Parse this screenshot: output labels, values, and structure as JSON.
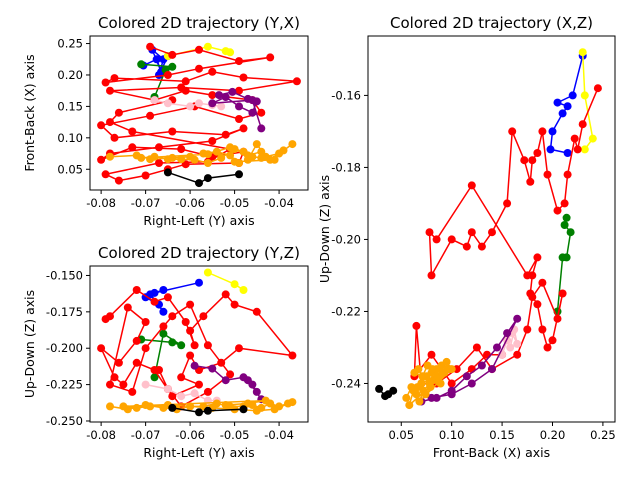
{
  "chart_data": [
    {
      "type": "line",
      "title": "Colored 2D trajectory (Y,X)",
      "xlabel": "Right-Left (Y) axis",
      "ylabel": "Front-Back (X) axis",
      "xlim": [
        -0.0825,
        -0.0335
      ],
      "ylim": [
        0.017,
        0.262
      ],
      "xticks": [
        "-0.08",
        "-0.07",
        "-0.06",
        "-0.05",
        "-0.04"
      ],
      "xtick_values": [
        -0.08,
        -0.07,
        -0.06,
        -0.05,
        -0.04
      ],
      "yticks": [
        "0.05",
        "0.10",
        "0.15",
        "0.20",
        "0.25"
      ],
      "ytick_values": [
        0.05,
        0.1,
        0.15,
        0.2,
        0.25
      ],
      "grid": false,
      "series": [
        {
          "color": "#0000ff",
          "x": [
            -0.0705,
            -0.0675,
            -0.0665,
            -0.0685,
            -0.066,
            -0.067,
            -0.065
          ],
          "y": [
            0.215,
            0.225,
            0.205,
            0.24,
            0.225,
            0.2,
            0.23
          ]
        },
        {
          "color": "#ffff00",
          "x": [
            -0.065,
            -0.056,
            -0.052,
            -0.051
          ],
          "y": [
            0.23,
            0.245,
            0.238,
            0.236
          ]
        },
        {
          "color": "#008000",
          "x": [
            -0.071,
            -0.064,
            -0.0655,
            -0.068
          ],
          "y": [
            0.217,
            0.213,
            0.208,
            0.165
          ]
        },
        {
          "color": "#ff0000",
          "x": [
            -0.069,
            -0.064,
            -0.058,
            -0.049,
            -0.042,
            -0.058,
            -0.065,
            -0.079,
            -0.077,
            -0.061,
            -0.055,
            -0.048,
            -0.036,
            -0.049,
            -0.062,
            -0.078,
            -0.068,
            -0.061,
            -0.055,
            -0.046,
            -0.044,
            -0.049,
            -0.059,
            -0.069,
            -0.08,
            -0.077,
            -0.064,
            -0.052,
            -0.048,
            -0.055,
            -0.067,
            -0.078,
            -0.08,
            -0.073,
            -0.062,
            -0.055,
            -0.048,
            -0.049,
            -0.061,
            -0.065,
            -0.07,
            -0.076,
            -0.079,
            -0.067,
            -0.056,
            -0.051,
            -0.073,
            -0.078,
            -0.076,
            -0.064
          ],
          "y": [
            0.245,
            0.232,
            0.24,
            0.222,
            0.228,
            0.21,
            0.2,
            0.188,
            0.195,
            0.19,
            0.205,
            0.196,
            0.19,
            0.175,
            0.18,
            0.175,
            0.16,
            0.175,
            0.168,
            0.16,
            0.14,
            0.13,
            0.15,
            0.135,
            0.12,
            0.1,
            0.11,
            0.105,
            0.115,
            0.095,
            0.085,
            0.075,
            0.065,
            0.085,
            0.082,
            0.07,
            0.078,
            0.06,
            0.058,
            0.05,
            0.04,
            0.032,
            0.042,
            0.06,
            0.062,
            0.082,
            0.11,
            0.125,
            0.14,
            0.16
          ]
        },
        {
          "color": "#ffc0cb",
          "x": [
            -0.068,
            -0.065,
            -0.06,
            -0.058,
            -0.055,
            -0.053
          ],
          "y": [
            0.16,
            0.155,
            0.15,
            0.155,
            0.152,
            0.15
          ]
        },
        {
          "color": "#800080",
          "x": [
            -0.0535,
            -0.0505,
            -0.047,
            -0.045,
            -0.046,
            -0.049,
            -0.052,
            -0.055,
            -0.046,
            -0.044
          ],
          "y": [
            0.168,
            0.173,
            0.162,
            0.158,
            0.14,
            0.15,
            0.165,
            0.155,
            0.16,
            0.115
          ]
        },
        {
          "color": "#ffa500",
          "x": [
            -0.078,
            -0.072,
            -0.069,
            -0.064,
            -0.06,
            -0.057,
            -0.054,
            -0.051,
            -0.049,
            -0.047,
            -0.045,
            -0.043,
            -0.04,
            -0.037,
            -0.039,
            -0.042,
            -0.044,
            -0.047,
            -0.05,
            -0.053,
            -0.056,
            -0.059,
            -0.062,
            -0.065,
            -0.068,
            -0.071,
            -0.056,
            -0.051,
            -0.048,
            -0.046,
            -0.044,
            -0.041,
            -0.05
          ],
          "y": [
            0.07,
            0.072,
            0.066,
            0.068,
            0.07,
            0.075,
            0.078,
            0.072,
            0.06,
            0.065,
            0.09,
            0.07,
            0.075,
            0.09,
            0.08,
            0.065,
            0.078,
            0.072,
            0.082,
            0.068,
            0.06,
            0.065,
            0.066,
            0.066,
            0.07,
            0.068,
            0.074,
            0.085,
            0.078,
            0.07,
            0.068,
            0.065,
            0.062
          ]
        },
        {
          "color": "#000000",
          "x": [
            -0.065,
            -0.058,
            -0.056,
            -0.049
          ],
          "y": [
            0.045,
            0.028,
            0.036,
            0.042
          ]
        }
      ]
    },
    {
      "type": "line",
      "title": "Colored 2D trajectory (Y,Z)",
      "xlabel": "Right-Left (Y) axis",
      "ylabel": "Up-Down (Z) axis",
      "xlim": [
        -0.0825,
        -0.0335
      ],
      "ylim": [
        -0.2507,
        -0.1435
      ],
      "xticks": [
        "-0.08",
        "-0.07",
        "-0.06",
        "-0.05",
        "-0.04"
      ],
      "xtick_values": [
        -0.08,
        -0.07,
        -0.06,
        -0.05,
        -0.04
      ],
      "yticks": [
        "-0.150",
        "-0.175",
        "-0.200",
        "-0.225",
        "-0.250"
      ],
      "ytick_values": [
        -0.15,
        -0.175,
        -0.2,
        -0.225,
        -0.25
      ],
      "grid": false,
      "series": [
        {
          "color": "#0000ff",
          "x": [
            -0.058,
            -0.068,
            -0.066,
            -0.07,
            -0.067,
            -0.069,
            -0.066
          ],
          "y": [
            -0.155,
            -0.162,
            -0.16,
            -0.165,
            -0.17,
            -0.163,
            -0.175
          ]
        },
        {
          "color": "#ffff00",
          "x": [
            -0.056,
            -0.05,
            -0.048
          ],
          "y": [
            -0.148,
            -0.156,
            -0.16
          ]
        },
        {
          "color": "#008000",
          "x": [
            -0.071,
            -0.064,
            -0.062,
            -0.066,
            -0.068
          ],
          "y": [
            -0.194,
            -0.196,
            -0.198,
            -0.19,
            -0.22
          ]
        },
        {
          "color": "#ff0000",
          "x": [
            -0.079,
            -0.078,
            -0.072,
            -0.068,
            -0.065,
            -0.061,
            -0.059,
            -0.06,
            -0.057,
            -0.052,
            -0.05,
            -0.045,
            -0.037,
            -0.049,
            -0.053,
            -0.058,
            -0.06,
            -0.062,
            -0.058,
            -0.064,
            -0.068,
            -0.072,
            -0.075,
            -0.077,
            -0.08,
            -0.076,
            -0.072,
            -0.07,
            -0.074,
            -0.078,
            -0.073,
            -0.07,
            -0.066,
            -0.064,
            -0.06,
            -0.056,
            -0.051,
            -0.056,
            -0.062,
            -0.065,
            -0.067
          ],
          "y": [
            -0.18,
            -0.178,
            -0.16,
            -0.168,
            -0.165,
            -0.182,
            -0.198,
            -0.188,
            -0.178,
            -0.163,
            -0.17,
            -0.175,
            -0.205,
            -0.2,
            -0.21,
            -0.215,
            -0.205,
            -0.22,
            -0.225,
            -0.233,
            -0.215,
            -0.21,
            -0.225,
            -0.22,
            -0.2,
            -0.21,
            -0.195,
            -0.182,
            -0.172,
            -0.225,
            -0.23,
            -0.2,
            -0.185,
            -0.178,
            -0.17,
            -0.198,
            -0.218,
            -0.23,
            -0.24,
            -0.228,
            -0.215
          ]
        },
        {
          "color": "#ffc0cb",
          "x": [
            -0.07,
            -0.065,
            -0.062,
            -0.059,
            -0.056,
            -0.054
          ],
          "y": [
            -0.225,
            -0.228,
            -0.233,
            -0.231,
            -0.236,
            -0.236
          ]
        },
        {
          "color": "#800080",
          "x": [
            -0.059,
            -0.055,
            -0.052,
            -0.048,
            -0.046,
            -0.045,
            -0.047,
            -0.044
          ],
          "y": [
            -0.212,
            -0.214,
            -0.222,
            -0.22,
            -0.225,
            -0.23,
            -0.222,
            -0.235
          ]
        },
        {
          "color": "#ffa500",
          "x": [
            -0.078,
            -0.074,
            -0.07,
            -0.066,
            -0.063,
            -0.06,
            -0.057,
            -0.054,
            -0.051,
            -0.048,
            -0.046,
            -0.044,
            -0.042,
            -0.04,
            -0.038,
            -0.037,
            -0.041,
            -0.045,
            -0.05,
            -0.055,
            -0.06,
            -0.065,
            -0.069,
            -0.072,
            -0.075,
            -0.043,
            -0.047,
            -0.052
          ],
          "y": [
            -0.24,
            -0.242,
            -0.239,
            -0.241,
            -0.242,
            -0.24,
            -0.24,
            -0.238,
            -0.24,
            -0.24,
            -0.239,
            -0.241,
            -0.238,
            -0.24,
            -0.238,
            -0.237,
            -0.242,
            -0.243,
            -0.242,
            -0.241,
            -0.24,
            -0.239,
            -0.24,
            -0.241,
            -0.24,
            -0.236,
            -0.238,
            -0.239
          ]
        },
        {
          "color": "#000000",
          "x": [
            -0.064,
            -0.058,
            -0.056,
            -0.048
          ],
          "y": [
            -0.241,
            -0.244,
            -0.243,
            -0.242
          ]
        }
      ]
    },
    {
      "type": "line",
      "title": "Colored 2D trajectory (X,Z)",
      "xlabel": "Front-Back (X) axis",
      "ylabel": "Up-Down (Z) axis",
      "xlim": [
        0.017,
        0.262
      ],
      "ylim": [
        -0.2507,
        -0.1435
      ],
      "xticks": [
        "0.05",
        "0.10",
        "0.15",
        "0.20",
        "0.25"
      ],
      "xtick_values": [
        0.05,
        0.1,
        0.15,
        0.2,
        0.25
      ],
      "yticks": [
        "-0.16",
        "-0.18",
        "-0.20",
        "-0.22",
        "-0.24"
      ],
      "ytick_values": [
        -0.16,
        -0.18,
        -0.2,
        -0.22,
        -0.24
      ],
      "grid": false,
      "series": [
        {
          "color": "#0000ff",
          "x": [
            0.23,
            0.22,
            0.205,
            0.215,
            0.21,
            0.2,
            0.198,
            0.215
          ],
          "y": [
            -0.149,
            -0.16,
            -0.162,
            -0.163,
            -0.165,
            -0.17,
            -0.175,
            -0.176
          ]
        },
        {
          "color": "#ffff00",
          "x": [
            0.23,
            0.232,
            0.24,
            0.232
          ],
          "y": [
            -0.148,
            -0.16,
            -0.172,
            -0.175
          ]
        },
        {
          "color": "#008000",
          "x": [
            0.214,
            0.212,
            0.218,
            0.214,
            0.21,
            0.205
          ],
          "y": [
            -0.194,
            -0.196,
            -0.198,
            -0.205,
            -0.205,
            -0.22
          ]
        },
        {
          "color": "#ff0000",
          "x": [
            0.245,
            0.23,
            0.225,
            0.222,
            0.215,
            0.212,
            0.205,
            0.195,
            0.19,
            0.185,
            0.18,
            0.178,
            0.172,
            0.16,
            0.155,
            0.14,
            0.13,
            0.12,
            0.115,
            0.1,
            0.08,
            0.078,
            0.085,
            0.12,
            0.175,
            0.185,
            0.18,
            0.178,
            0.185,
            0.19,
            0.195,
            0.2,
            0.21,
            0.205,
            0.19,
            0.18,
            0.175,
            0.165,
            0.14,
            0.125,
            0.105,
            0.085,
            0.07,
            0.065,
            0.063,
            0.08,
            0.1,
            0.12,
            0.135,
            0.15
          ],
          "y": [
            -0.158,
            -0.168,
            -0.175,
            -0.172,
            -0.182,
            -0.19,
            -0.192,
            -0.182,
            -0.17,
            -0.176,
            -0.178,
            -0.184,
            -0.178,
            -0.17,
            -0.19,
            -0.198,
            -0.202,
            -0.198,
            -0.202,
            -0.2,
            -0.21,
            -0.198,
            -0.2,
            -0.185,
            -0.21,
            -0.205,
            -0.21,
            -0.215,
            -0.218,
            -0.225,
            -0.23,
            -0.228,
            -0.215,
            -0.222,
            -0.212,
            -0.216,
            -0.225,
            -0.232,
            -0.236,
            -0.23,
            -0.236,
            -0.24,
            -0.24,
            -0.224,
            -0.238,
            -0.232,
            -0.24,
            -0.236,
            -0.232,
            -0.232
          ]
        },
        {
          "color": "#ffc0cb",
          "x": [
            0.15,
            0.155,
            0.16,
            0.165,
            0.162,
            0.158
          ],
          "y": [
            -0.232,
            -0.228,
            -0.226,
            -0.229,
            -0.225,
            -0.23
          ]
        },
        {
          "color": "#800080",
          "x": [
            0.07,
            0.085,
            0.1,
            0.115,
            0.13,
            0.145,
            0.155,
            0.165,
            0.14,
            0.12,
            0.1,
            0.08
          ],
          "y": [
            -0.245,
            -0.244,
            -0.242,
            -0.238,
            -0.235,
            -0.23,
            -0.226,
            -0.222,
            -0.236,
            -0.24,
            -0.243,
            -0.244
          ]
        },
        {
          "color": "#ffa500",
          "x": [
            0.055,
            0.06,
            0.065,
            0.07,
            0.075,
            0.08,
            0.085,
            0.09,
            0.095,
            0.1,
            0.068,
            0.072,
            0.078,
            0.082,
            0.088,
            0.093,
            0.098,
            0.058,
            0.062,
            0.066,
            0.074,
            0.079,
            0.084,
            0.089,
            0.063,
            0.067,
            0.071,
            0.076,
            0.081,
            0.086,
            0.091,
            0.096,
            0.07
          ],
          "y": [
            -0.244,
            -0.241,
            -0.243,
            -0.24,
            -0.238,
            -0.237,
            -0.236,
            -0.235,
            -0.234,
            -0.236,
            -0.245,
            -0.242,
            -0.24,
            -0.239,
            -0.238,
            -0.237,
            -0.236,
            -0.246,
            -0.242,
            -0.241,
            -0.243,
            -0.241,
            -0.239,
            -0.24,
            -0.237,
            -0.236,
            -0.238,
            -0.235,
            -0.236,
            -0.238,
            -0.237,
            -0.236,
            -0.24
          ]
        },
        {
          "color": "#000000",
          "x": [
            0.028,
            0.034,
            0.037,
            0.042
          ],
          "y": [
            -0.2415,
            -0.2435,
            -0.243,
            -0.242
          ]
        }
      ]
    }
  ]
}
